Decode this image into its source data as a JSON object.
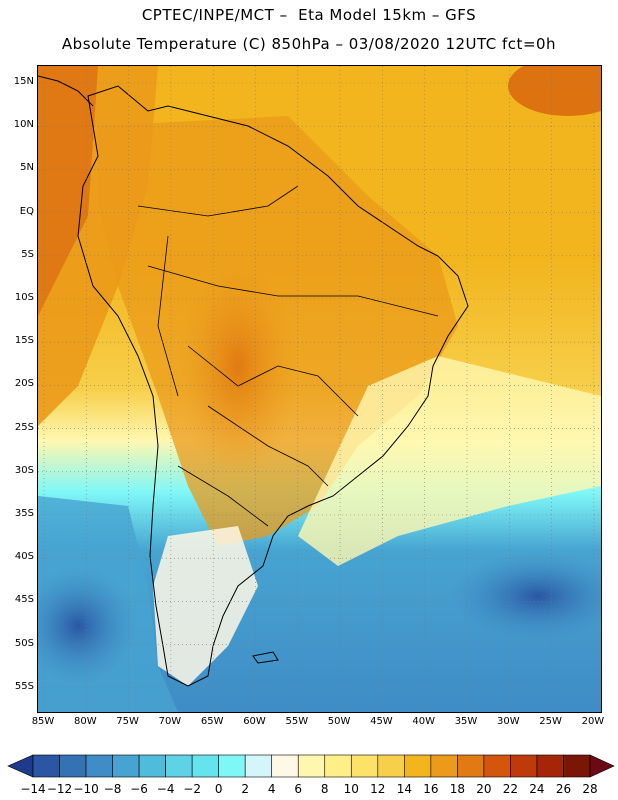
{
  "header": {
    "line1": "CPTEC/INPE/MCT –  Eta Model 15km – GFS",
    "line2": "Absolute Temperature (C) 850hPa – 03/08/2020 12UTC fct=0h"
  },
  "map": {
    "lat_labels": [
      "15N",
      "10N",
      "5N",
      "EQ",
      "5S",
      "10S",
      "15S",
      "20S",
      "25S",
      "30S",
      "35S",
      "40S",
      "45S",
      "50S",
      "55S"
    ],
    "lon_labels": [
      "85W",
      "80W",
      "75W",
      "70W",
      "65W",
      "60W",
      "55W",
      "50W",
      "45W",
      "40W",
      "35W",
      "30W",
      "25W",
      "20W"
    ]
  },
  "colorbar": {
    "labels": [
      "-14",
      "-12",
      "-10",
      "-8",
      "-6",
      "-4",
      "-2",
      "0",
      "2",
      "4",
      "6",
      "8",
      "10",
      "12",
      "14",
      "16",
      "18",
      "20",
      "22",
      "24",
      "26",
      "28"
    ],
    "colors": [
      "#1f3a8a",
      "#2a56a3",
      "#3572b4",
      "#3f8cc6",
      "#47a4d1",
      "#4fbcdb",
      "#5ed3e6",
      "#66e4ee",
      "#7ff7f7",
      "#d4f6fb",
      "#fff8e6",
      "#fff7b0",
      "#ffef88",
      "#fde26a",
      "#f7cf4a",
      "#f2b51e",
      "#eb9a1a",
      "#e17a12",
      "#d4560c",
      "#bf3a0a",
      "#a52508",
      "#7a1606",
      "#6b0a14"
    ]
  }
}
